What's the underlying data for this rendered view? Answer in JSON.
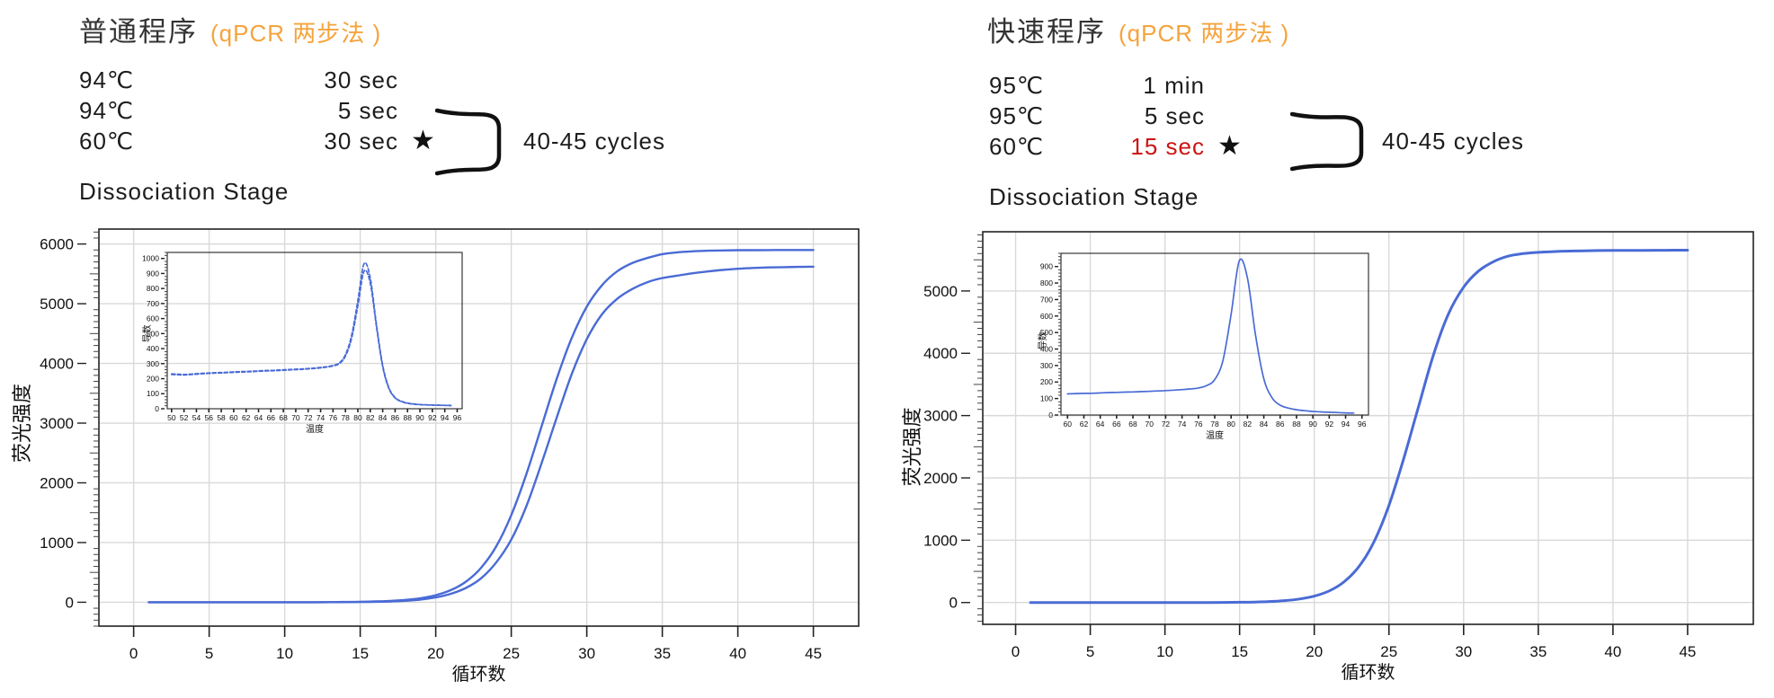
{
  "colors": {
    "curve_blue": "#4a6bd5",
    "grid_gray": "#d9d9d9",
    "accent_orange": "#F5A33C",
    "highlight_red": "#CC1414",
    "frame_dark": "#222222"
  },
  "left_panel": {
    "title": "普通程序",
    "title_suffix": "(qPCR 两步法 )",
    "protocol": {
      "rows": [
        {
          "temp": "94℃",
          "time": "30 sec",
          "star": ""
        },
        {
          "temp": "94℃",
          "time": "5 sec",
          "star": ""
        },
        {
          "temp": "60℃",
          "time": "30 sec",
          "star": "★"
        }
      ],
      "cycles_label": "40-45 cycles",
      "footer": "Dissociation Stage"
    }
  },
  "right_panel": {
    "title": "快速程序",
    "title_suffix": "(qPCR 两步法 )",
    "protocol": {
      "rows": [
        {
          "temp": "95℃",
          "time": "1 min",
          "star": ""
        },
        {
          "temp": "95℃",
          "time": "5 sec",
          "star": ""
        },
        {
          "temp": "60℃",
          "time": "15 sec",
          "star": "★"
        }
      ],
      "cycles_label": "40-45 cycles",
      "footer": "Dissociation Stage"
    }
  },
  "chart_data": [
    {
      "id": "left-main",
      "type": "line",
      "title": "",
      "xlabel": "循环数",
      "ylabel": "荧光强度",
      "xlim": [
        -2.3,
        48.0
      ],
      "ylim": [
        -400,
        6250
      ],
      "xticks": [
        0,
        5,
        10,
        15,
        20,
        25,
        30,
        35,
        40,
        45
      ],
      "yticks": [
        0,
        1000,
        2000,
        3000,
        4000,
        5000,
        6000
      ],
      "grid": true,
      "legend": "none",
      "x": [
        1,
        2,
        3,
        4,
        5,
        6,
        7,
        8,
        9,
        10,
        11,
        12,
        13,
        14,
        15,
        16,
        17,
        18,
        19,
        20,
        21,
        22,
        23,
        24,
        25,
        26,
        27,
        28,
        29,
        30,
        31,
        32,
        33,
        34,
        35,
        36,
        37,
        38,
        39,
        40,
        41,
        42,
        43,
        44,
        45
      ],
      "series": [
        {
          "name": "amplification-curve-1",
          "values": [
            0,
            0,
            0,
            0,
            0,
            0,
            0,
            0,
            0,
            0,
            0,
            0,
            2,
            4,
            8,
            13,
            23,
            39,
            68,
            118,
            203,
            344,
            576,
            933,
            1459,
            2146,
            2940,
            3735,
            4424,
            4950,
            5307,
            5540,
            5680,
            5765,
            5830,
            5860,
            5877,
            5887,
            5892,
            5896,
            5897,
            5898,
            5899,
            5899,
            5900
          ]
        },
        {
          "name": "amplification-curve-2",
          "values": [
            0,
            0,
            0,
            0,
            0,
            0,
            0,
            0,
            0,
            0,
            0,
            0,
            1,
            2,
            4,
            8,
            14,
            25,
            45,
            81,
            141,
            240,
            400,
            665,
            1049,
            1608,
            2323,
            3085,
            3818,
            4405,
            4820,
            5080,
            5245,
            5360,
            5430,
            5470,
            5510,
            5540,
            5565,
            5585,
            5598,
            5607,
            5612,
            5616,
            5620
          ]
        }
      ]
    },
    {
      "id": "right-main",
      "type": "line",
      "title": "",
      "xlabel": "循环数",
      "ylabel": "荧光强度",
      "xlim": [
        -2.2,
        49.4
      ],
      "ylim": [
        -350,
        5950
      ],
      "xticks": [
        0,
        5,
        10,
        15,
        20,
        25,
        30,
        35,
        40,
        45
      ],
      "yticks": [
        0,
        1000,
        2000,
        3000,
        4000,
        5000
      ],
      "grid": true,
      "legend": "none",
      "x": [
        1,
        2,
        3,
        4,
        5,
        6,
        7,
        8,
        9,
        10,
        11,
        12,
        13,
        14,
        15,
        16,
        17,
        18,
        19,
        20,
        21,
        22,
        23,
        24,
        25,
        26,
        27,
        28,
        29,
        30,
        31,
        32,
        33,
        34,
        35,
        36,
        37,
        38,
        39,
        40,
        41,
        42,
        43,
        44,
        45
      ],
      "series": [
        {
          "name": "amplification-curve",
          "values": [
            0,
            0,
            0,
            0,
            0,
            0,
            0,
            0,
            0,
            0,
            0,
            0,
            1,
            2,
            4,
            8,
            16,
            30,
            56,
            103,
            187,
            334,
            580,
            975,
            1560,
            2320,
            3160,
            3990,
            4640,
            5060,
            5320,
            5470,
            5560,
            5600,
            5620,
            5632,
            5640,
            5645,
            5648,
            5650,
            5651,
            5652,
            5653,
            5654,
            5655
          ]
        }
      ]
    },
    {
      "id": "left-inset",
      "type": "line",
      "title": "",
      "xlabel": "温度",
      "ylabel": "导数",
      "xlim": [
        49.3,
        96.8
      ],
      "ylim": [
        0,
        1040
      ],
      "xticks": [
        50,
        52,
        54,
        56,
        58,
        60,
        62,
        64,
        66,
        68,
        70,
        72,
        74,
        76,
        78,
        80,
        82,
        84,
        86,
        88,
        90,
        92,
        94,
        96
      ],
      "yticks": [
        0,
        100,
        200,
        300,
        400,
        500,
        600,
        700,
        800,
        900,
        1000
      ],
      "grid": false,
      "legend": "none",
      "x": [
        50,
        51,
        52,
        53,
        54,
        55,
        56,
        57,
        58,
        59,
        60,
        61,
        62,
        63,
        64,
        65,
        66,
        67,
        68,
        69,
        70,
        71,
        72,
        73,
        74,
        75,
        76,
        77,
        78,
        79,
        80,
        81,
        82,
        83,
        84,
        85,
        86,
        87,
        88,
        89,
        90,
        91,
        92,
        93,
        94,
        95
      ],
      "series": [
        {
          "name": "melt-curve-1",
          "values": [
            232,
            230,
            228,
            230,
            233,
            236,
            238,
            240,
            241,
            243,
            245,
            247,
            248,
            250,
            252,
            254,
            255,
            257,
            259,
            261,
            263,
            265,
            268,
            271,
            275,
            280,
            288,
            305,
            360,
            490,
            720,
            965,
            870,
            560,
            290,
            140,
            75,
            50,
            38,
            32,
            28,
            26,
            25,
            24,
            23,
            22
          ]
        },
        {
          "name": "melt-curve-2",
          "values": [
            228,
            226,
            225,
            227,
            230,
            233,
            235,
            237,
            238,
            240,
            242,
            244,
            245,
            247,
            249,
            251,
            252,
            254,
            256,
            258,
            260,
            262,
            265,
            268,
            272,
            277,
            285,
            300,
            350,
            470,
            685,
            915,
            835,
            545,
            280,
            135,
            72,
            48,
            36,
            30,
            27,
            25,
            24,
            23,
            22,
            21
          ]
        }
      ]
    },
    {
      "id": "right-inset",
      "type": "line",
      "title": "",
      "xlabel": "温度",
      "ylabel": "导数",
      "xlim": [
        59.2,
        96.8
      ],
      "ylim": [
        0,
        980
      ],
      "xticks": [
        60,
        62,
        64,
        66,
        68,
        70,
        72,
        74,
        76,
        78,
        80,
        82,
        84,
        86,
        88,
        90,
        92,
        94,
        96
      ],
      "yticks": [
        0,
        100,
        200,
        300,
        400,
        500,
        600,
        700,
        800,
        900
      ],
      "grid": false,
      "legend": "none",
      "x": [
        60,
        61,
        62,
        63,
        64,
        65,
        66,
        67,
        68,
        69,
        70,
        71,
        72,
        73,
        74,
        75,
        76,
        77,
        78,
        79,
        80,
        81,
        82,
        83,
        84,
        85,
        86,
        87,
        88,
        89,
        90,
        91,
        92,
        93,
        94,
        95
      ],
      "series": [
        {
          "name": "melt-curve",
          "values": [
            128,
            130,
            131,
            132,
            134,
            136,
            137,
            139,
            140,
            142,
            144,
            146,
            148,
            151,
            154,
            158,
            164,
            178,
            215,
            330,
            610,
            935,
            830,
            480,
            220,
            105,
            60,
            42,
            32,
            26,
            22,
            19,
            17,
            15,
            13,
            12
          ]
        }
      ]
    }
  ]
}
